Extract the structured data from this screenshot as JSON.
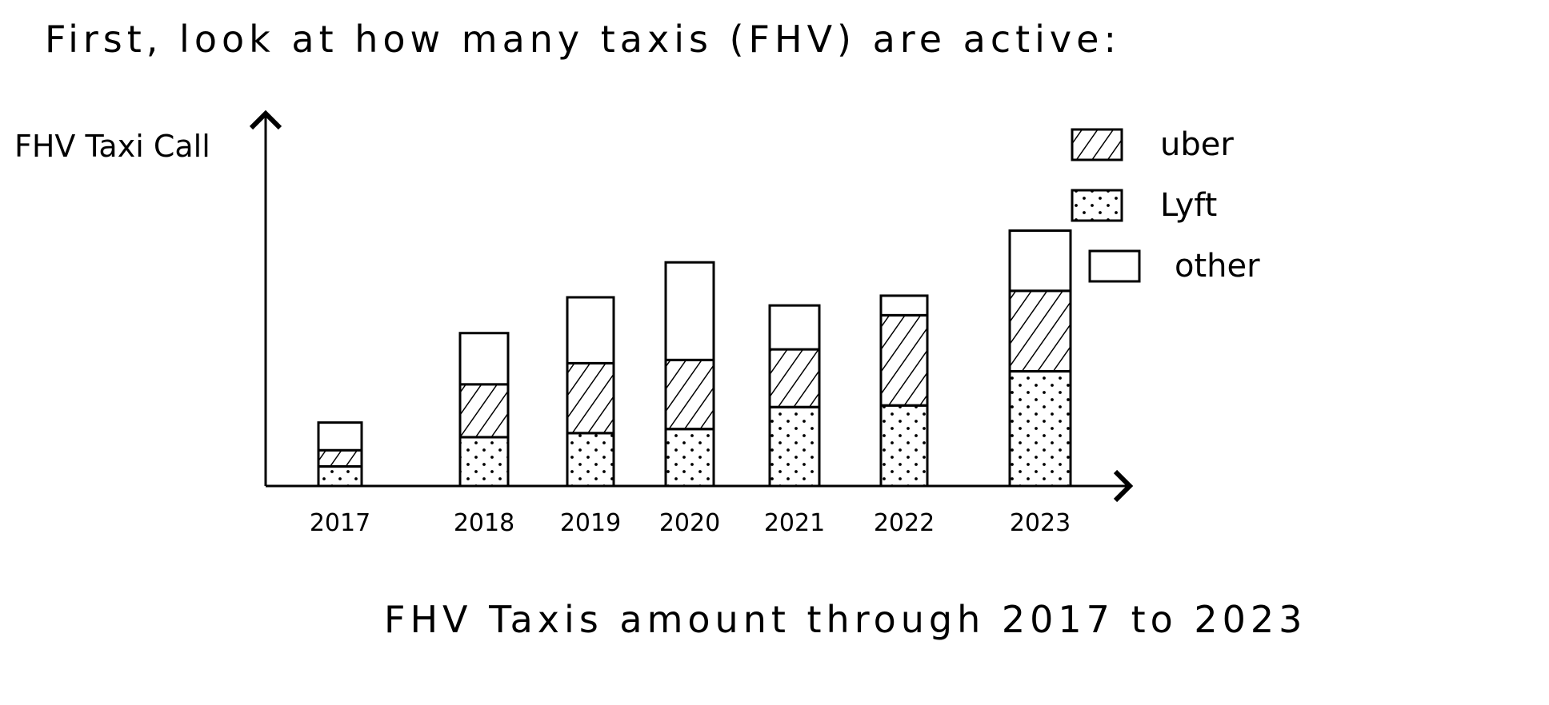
{
  "page": {
    "heading": "First, look at how many taxis (FHV) are active:",
    "caption": "FHV Taxis amount through 2017 to 2023"
  },
  "chart_data": {
    "type": "bar",
    "stacked": true,
    "title": "",
    "ylabel": "FHV Taxi Call",
    "xlabel": "",
    "categories": [
      "2017",
      "2018",
      "2019",
      "2020",
      "2021",
      "2022",
      "2023"
    ],
    "series": [
      {
        "name": "Lyft",
        "pattern": "dots",
        "values": [
          24,
          60,
          65,
          70,
          97,
          99,
          141
        ]
      },
      {
        "name": "uber",
        "pattern": "hatch",
        "values": [
          20,
          65,
          86,
          85,
          71,
          111,
          99
        ]
      },
      {
        "name": "other",
        "pattern": "none",
        "values": [
          34,
          63,
          81,
          120,
          54,
          24,
          74
        ]
      }
    ],
    "ylim": [
      0,
      460
    ],
    "legend_position": "top-right",
    "grid": false,
    "y_ticks": false
  }
}
